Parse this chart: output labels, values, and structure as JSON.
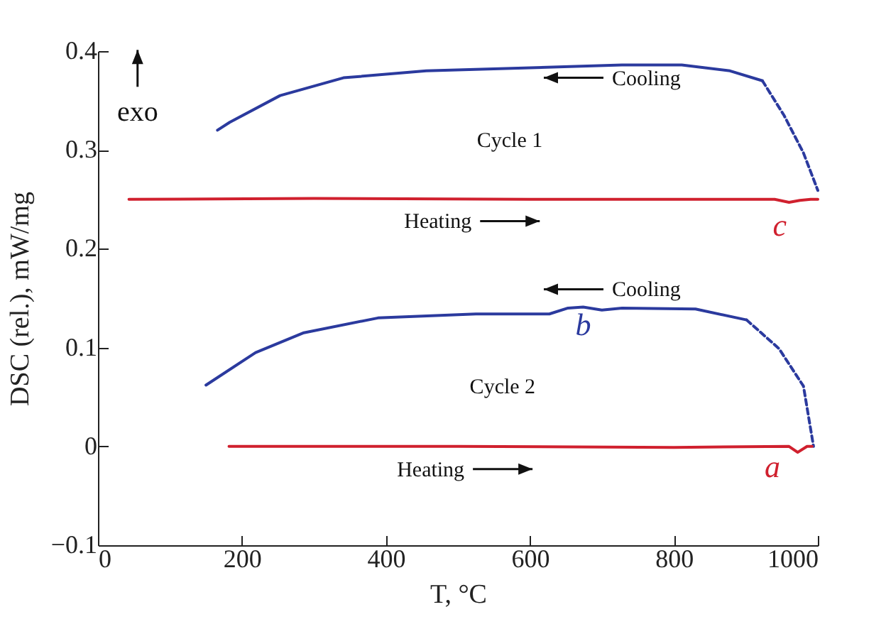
{
  "chart_data": {
    "type": "line",
    "xlabel": "T, °C",
    "ylabel": "DSC (rel.), mW/mg",
    "xlim": [
      0,
      1000
    ],
    "xticks": [
      0,
      200,
      400,
      600,
      800,
      1000
    ],
    "ylim": [
      -0.1,
      0.4
    ],
    "yticks": [
      {
        "value": -0.1,
        "label": "−0.1"
      },
      0,
      0.1,
      0.2,
      0.3,
      0.4
    ],
    "grid": false,
    "line_style": "solid",
    "series": [
      {
        "color": "#2b3a9e",
        "x": [
          166,
          183,
          253,
          341,
          456,
          592,
          728,
          811,
          878,
          923
        ],
        "values": [
          0.32,
          0.328,
          0.355,
          0.373,
          0.38,
          0.383,
          0.386,
          0.386,
          0.38,
          0.37
        ]
      },
      {
        "color": "#2b3a9e",
        "line_style": "dashed",
        "x": [
          923,
          953,
          980,
          1000
        ],
        "values": [
          0.37,
          0.335,
          0.297,
          0.259
        ]
      },
      {
        "color": "#d0202e",
        "x": [
          43,
          300,
          600,
          900,
          940,
          960,
          975,
          990,
          1000
        ],
        "values": [
          0.25,
          0.251,
          0.25,
          0.25,
          0.25,
          0.247,
          0.249,
          0.25,
          0.25
        ]
      },
      {
        "color": "#2b3a9e",
        "x": [
          150,
          219,
          286,
          389,
          525,
          627,
          653,
          674,
          700,
          728,
          830,
          901
        ],
        "values": [
          0.062,
          0.095,
          0.115,
          0.13,
          0.134,
          0.134,
          0.14,
          0.141,
          0.138,
          0.14,
          0.139,
          0.128
        ]
      },
      {
        "color": "#2b3a9e",
        "line_style": "dashed",
        "x": [
          901,
          946,
          980,
          994
        ],
        "values": [
          0.128,
          0.099,
          0.061,
          0.0
        ]
      },
      {
        "color": "#d0202e",
        "x": [
          182,
          500,
          800,
          960,
          972,
          985,
          992
        ],
        "values": [
          0.0,
          0.0,
          -0.001,
          0.0,
          -0.006,
          0.0,
          0.0
        ]
      }
    ],
    "annotations": [
      "exo",
      "Cycle 1",
      "Cycle 2",
      "Cooling",
      "Heating",
      "Cooling",
      "Heating",
      "c",
      "b",
      "a"
    ]
  }
}
